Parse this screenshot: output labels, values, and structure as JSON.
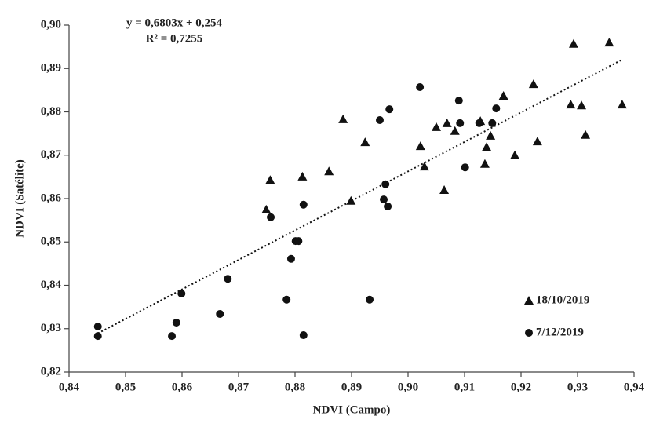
{
  "chart_data": {
    "type": "scatter",
    "x_label": "NDVI (Campo)",
    "y_label": "NDVI (Satélite)",
    "xlim": [
      0.84,
      0.94
    ],
    "ylim": [
      0.82,
      0.9
    ],
    "xticks": [
      {
        "value": 0.84,
        "label": "0,84"
      },
      {
        "value": 0.85,
        "label": "0,85"
      },
      {
        "value": 0.86,
        "label": "0,86"
      },
      {
        "value": 0.87,
        "label": "0,87"
      },
      {
        "value": 0.88,
        "label": "0,88"
      },
      {
        "value": 0.89,
        "label": "0,89"
      },
      {
        "value": 0.9,
        "label": "0,90"
      },
      {
        "value": 0.91,
        "label": "0,91"
      },
      {
        "value": 0.92,
        "label": "0,92"
      },
      {
        "value": 0.93,
        "label": "0,93"
      },
      {
        "value": 0.94,
        "label": "0,94"
      }
    ],
    "yticks": [
      {
        "value": 0.82,
        "label": "0,82"
      },
      {
        "value": 0.83,
        "label": "0,83"
      },
      {
        "value": 0.84,
        "label": "0,84"
      },
      {
        "value": 0.85,
        "label": "0,85"
      },
      {
        "value": 0.86,
        "label": "0,86"
      },
      {
        "value": 0.87,
        "label": "0,87"
      },
      {
        "value": 0.88,
        "label": "0,88"
      },
      {
        "value": 0.89,
        "label": "0,89"
      },
      {
        "value": 0.9,
        "label": "0,90"
      }
    ],
    "grid": false,
    "legend": "lower right",
    "trendline": {
      "slope": 0.6803,
      "intercept": 0.254,
      "equation": "y = 0,6803x + 0,254",
      "r2": 0.7255,
      "r2_label": "R² = 0,7255"
    },
    "series": [
      {
        "name": "18/10/2019",
        "marker": "triangle",
        "color": "#111111",
        "x": [
          0.8756,
          0.8749,
          0.8813,
          0.886,
          0.8885,
          0.8899,
          0.8924,
          0.9022,
          0.9029,
          0.905,
          0.9064,
          0.9069,
          0.9083,
          0.9128,
          0.9136,
          0.9139,
          0.9146,
          0.9169,
          0.9189,
          0.9222,
          0.9229,
          0.9288,
          0.9293,
          0.9307,
          0.9314,
          0.9356,
          0.9379
        ],
        "values": [
          0.8643,
          0.8575,
          0.8651,
          0.8663,
          0.8783,
          0.8595,
          0.873,
          0.8721,
          0.8674,
          0.8765,
          0.862,
          0.8774,
          0.8756,
          0.8779,
          0.868,
          0.8719,
          0.8745,
          0.8837,
          0.87,
          0.8864,
          0.8732,
          0.8817,
          0.8957,
          0.8815,
          0.8747,
          0.896,
          0.8817
        ]
      },
      {
        "name": "7/12/2019",
        "marker": "circle",
        "color": "#111111",
        "x": [
          0.8451,
          0.8451,
          0.8582,
          0.859,
          0.8599,
          0.8667,
          0.8681,
          0.8757,
          0.8785,
          0.8793,
          0.8801,
          0.8806,
          0.8815,
          0.8815,
          0.8932,
          0.895,
          0.8957,
          0.896,
          0.8964,
          0.8967,
          0.9021,
          0.909,
          0.9092,
          0.9101,
          0.9126,
          0.9149,
          0.9156
        ],
        "values": [
          0.8305,
          0.8283,
          0.8283,
          0.8314,
          0.8381,
          0.8334,
          0.8415,
          0.8557,
          0.8367,
          0.8461,
          0.8502,
          0.8502,
          0.8586,
          0.8285,
          0.8367,
          0.8781,
          0.8598,
          0.8633,
          0.8582,
          0.8806,
          0.8857,
          0.8826,
          0.8774,
          0.8672,
          0.8774,
          0.8774,
          0.8808
        ]
      }
    ]
  }
}
